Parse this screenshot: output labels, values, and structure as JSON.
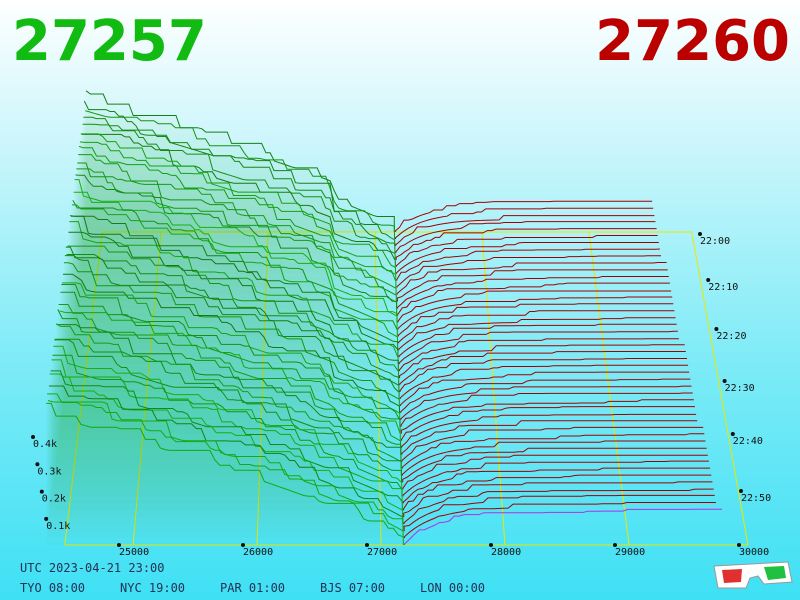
{
  "header": {
    "bid": "27257",
    "ask": "27260"
  },
  "price_axis": [
    "25000",
    "26000",
    "27000",
    "28000",
    "29000",
    "30000"
  ],
  "time_axis": [
    "22:00",
    "22:10",
    "22:20",
    "22:30",
    "22:40",
    "22:50"
  ],
  "volume_axis": [
    "0.4k",
    "0.3k",
    "0.2k",
    "0.1k"
  ],
  "clock": {
    "utc": "UTC 2023-04-21 23:00",
    "zones": [
      "TYO 08:00",
      "NYC 19:00",
      "PAR 01:00",
      "BJS 07:00",
      "LON 00:00"
    ]
  }
}
